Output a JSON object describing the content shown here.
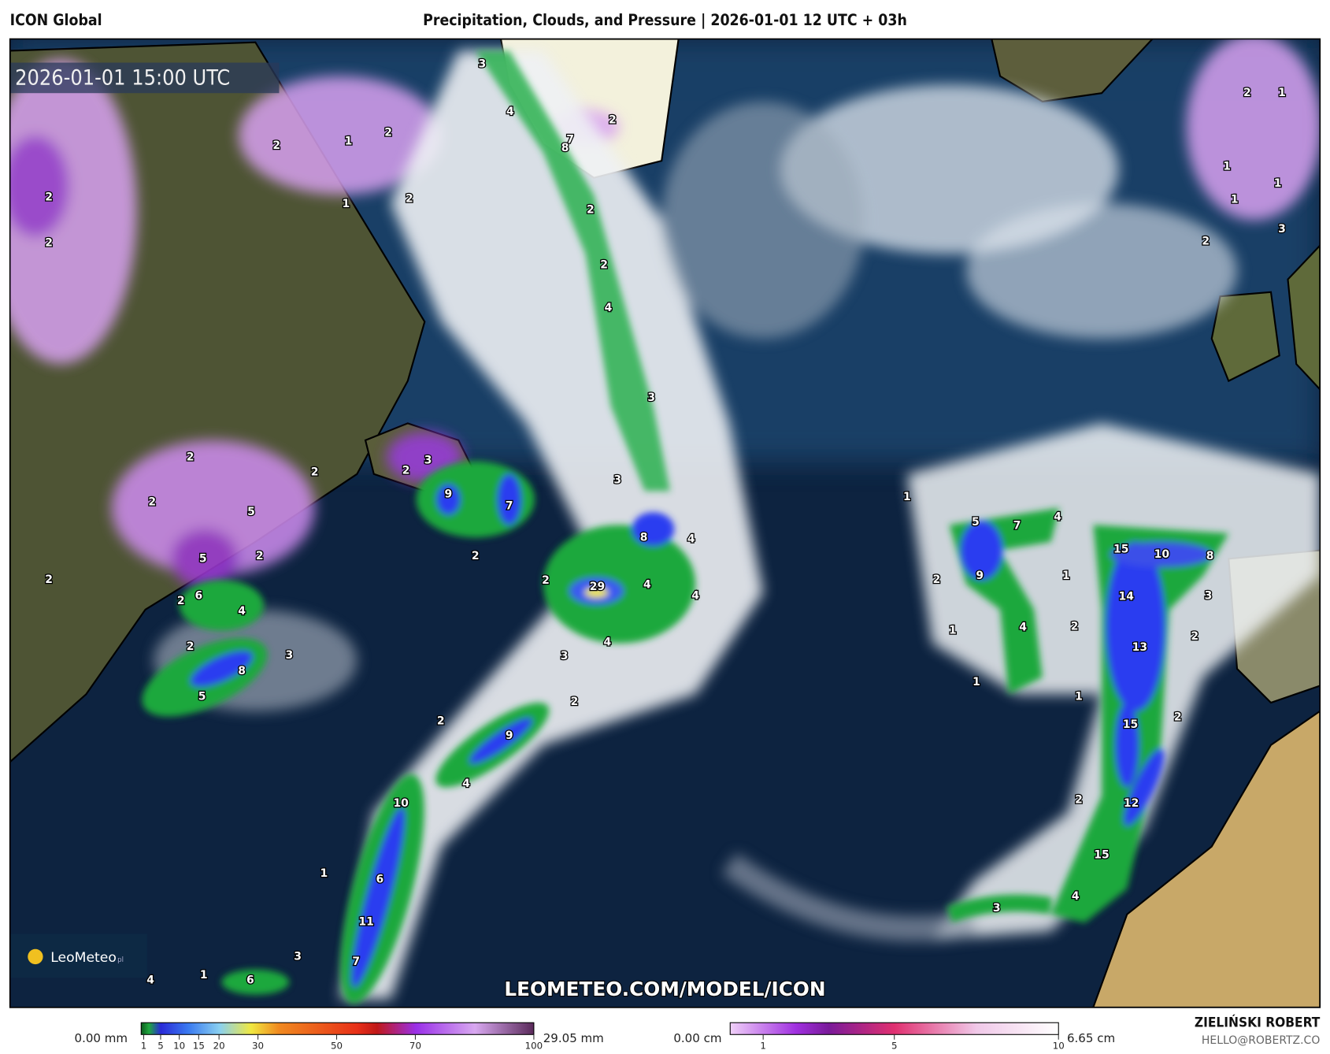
{
  "header": {
    "model": "ICON Global",
    "title": "Precipitation, Clouds, and Pressure | 2026-01-01 12 UTC + 03h"
  },
  "map": {
    "valid_time": "2026-01-01 15:00 UTC",
    "watermark": "LEOMETEO.COM/MODEL/ICON",
    "logo": "LeoMeteo",
    "logo_suffix": "pl",
    "region": "North Atlantic",
    "colors": {
      "ocean": "#0d2340",
      "cloud": "#f2f4f6",
      "rain": "#1a9a3a",
      "heavy_rain": "#2a3cf0",
      "snow": "#c98af0",
      "land": "#5a5a3a",
      "desert": "#c8a868"
    },
    "precip_labels": [
      "3",
      "4",
      "7",
      "8",
      "2",
      "2",
      "2",
      "4",
      "3",
      "3",
      "8",
      "4",
      "29",
      "4",
      "4",
      "2",
      "4",
      "3",
      "2",
      "9",
      "2",
      "4",
      "10",
      "6",
      "11",
      "7",
      "1",
      "3",
      "1",
      "6",
      "4",
      "9",
      "7",
      "3",
      "2",
      "2",
      "2",
      "2",
      "2",
      "5",
      "2",
      "5",
      "6",
      "2",
      "2",
      "4",
      "2",
      "3",
      "8",
      "5",
      "1",
      "2",
      "2",
      "1",
      "2",
      "2",
      "2",
      "1",
      "5",
      "7",
      "4",
      "9",
      "2",
      "1",
      "4",
      "1",
      "1",
      "2",
      "1",
      "15",
      "10",
      "8",
      "14",
      "3",
      "2",
      "13",
      "15",
      "2",
      "2",
      "12",
      "15",
      "4",
      "3",
      "2",
      "1",
      "1",
      "1",
      "1",
      "2",
      "3"
    ]
  },
  "legend": {
    "precip": {
      "min_label": "0.00 mm",
      "max_label": "29.05 mm",
      "ticks": [
        "1",
        "5",
        "10",
        "15",
        "20",
        "30",
        "50",
        "70",
        "100"
      ],
      "colors": [
        "#0b5a1e",
        "#1fa83e",
        "#2a2ad8",
        "#3a7af0",
        "#8ad0f0",
        "#f0e840",
        "#f08a20",
        "#e83018",
        "#c01818",
        "#9a30e8",
        "#d8a8f0",
        "#5a2a5a"
      ]
    },
    "snow": {
      "min_label": "0.00 cm",
      "max_label": "6.65 cm",
      "ticks": [
        "1",
        "5",
        "10"
      ],
      "colors": [
        "#f0d0f8",
        "#a030e0",
        "#7a1a9a",
        "#e03070",
        "#f0a8d8",
        "#ffffff"
      ]
    }
  },
  "credits": {
    "author": "ZIELIŃSKI ROBERT",
    "email": "HELLO@ROBERTZ.CO"
  }
}
